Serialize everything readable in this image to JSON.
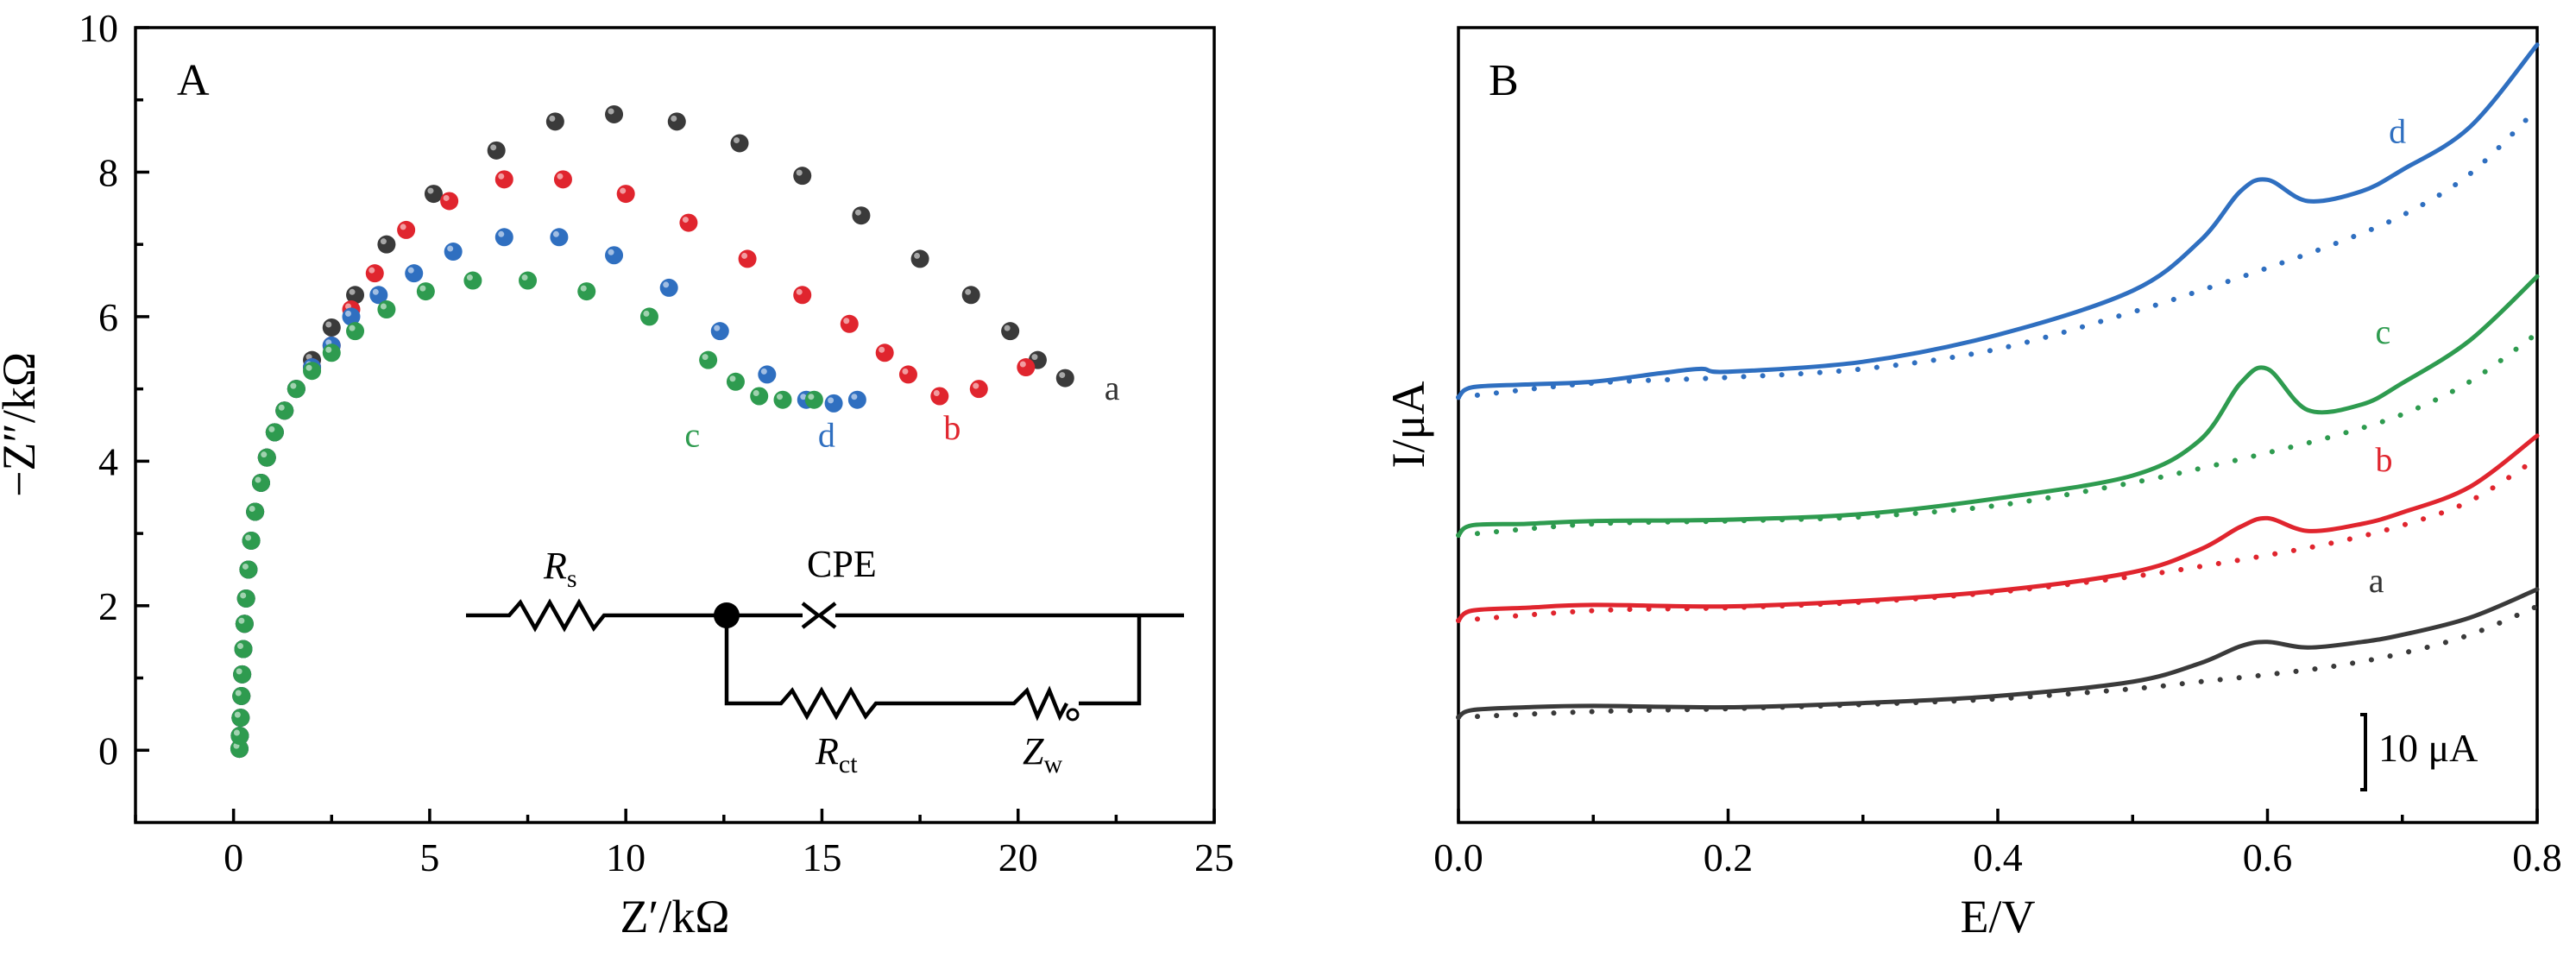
{
  "colors": {
    "a": "#3a3a3a",
    "b": "#e0252e",
    "c": "#2e9b4f",
    "d": "#2f6fc0"
  },
  "chart_data": [
    {
      "panel": "A",
      "type": "scatter",
      "xlabel": "Z′/kΩ",
      "ylabel": "−Z″/kΩ",
      "xlim": [
        -2.5,
        25
      ],
      "ylim": [
        -1,
        10
      ],
      "xticks": [
        "0",
        "5",
        "10",
        "15",
        "20",
        "25"
      ],
      "yticks": [
        "0",
        "2",
        "4",
        "6",
        "8",
        "10"
      ],
      "series": [
        {
          "name": "a",
          "x": [
            0.15,
            0.16,
            0.18,
            0.2,
            0.22,
            0.25,
            0.28,
            0.32,
            0.38,
            0.45,
            0.55,
            0.7,
            0.85,
            1.05,
            1.3,
            1.6,
            2.0,
            2.5,
            3.1,
            3.9,
            5.1,
            6.7,
            8.2,
            9.7,
            11.3,
            12.9,
            14.5,
            16.0,
            17.5,
            18.8,
            19.8,
            20.5,
            21.2
          ],
          "y": [
            0.02,
            0.2,
            0.45,
            0.75,
            1.05,
            1.4,
            1.75,
            2.1,
            2.5,
            2.9,
            3.3,
            3.7,
            4.05,
            4.4,
            4.7,
            5.0,
            5.4,
            5.85,
            6.3,
            7.0,
            7.7,
            8.3,
            8.7,
            8.8,
            8.7,
            8.4,
            7.95,
            7.4,
            6.8,
            6.3,
            5.8,
            5.4,
            5.15
          ]
        },
        {
          "name": "b",
          "x": [
            0.15,
            0.16,
            0.18,
            0.2,
            0.22,
            0.25,
            0.28,
            0.32,
            0.38,
            0.45,
            0.55,
            0.7,
            0.85,
            1.05,
            1.3,
            1.6,
            2.0,
            2.5,
            3.0,
            3.6,
            4.4,
            5.5,
            6.9,
            8.4,
            10.0,
            11.6,
            13.1,
            14.5,
            15.7,
            16.6,
            17.2,
            18.0,
            19.0,
            20.2
          ],
          "y": [
            0.02,
            0.2,
            0.45,
            0.75,
            1.05,
            1.4,
            1.75,
            2.1,
            2.5,
            2.9,
            3.3,
            3.7,
            4.05,
            4.4,
            4.7,
            5.0,
            5.3,
            5.6,
            6.1,
            6.6,
            7.2,
            7.6,
            7.9,
            7.9,
            7.7,
            7.3,
            6.8,
            6.3,
            5.9,
            5.5,
            5.2,
            4.9,
            5.0,
            5.3
          ]
        },
        {
          "name": "c",
          "x": [
            0.15,
            0.16,
            0.18,
            0.2,
            0.22,
            0.25,
            0.28,
            0.32,
            0.38,
            0.45,
            0.55,
            0.7,
            0.85,
            1.05,
            1.3,
            1.6,
            2.0,
            2.5,
            3.1,
            3.9,
            4.9,
            6.1,
            7.5,
            9.0,
            10.6,
            12.1,
            12.8,
            13.4,
            14.0,
            14.8
          ],
          "y": [
            0.02,
            0.2,
            0.45,
            0.75,
            1.05,
            1.4,
            1.75,
            2.1,
            2.5,
            2.9,
            3.3,
            3.7,
            4.05,
            4.4,
            4.7,
            5.0,
            5.25,
            5.5,
            5.8,
            6.1,
            6.35,
            6.5,
            6.5,
            6.35,
            6.0,
            5.4,
            5.1,
            4.9,
            4.85,
            4.85
          ]
        },
        {
          "name": "d",
          "x": [
            0.15,
            0.16,
            0.18,
            0.2,
            0.22,
            0.25,
            0.28,
            0.32,
            0.38,
            0.45,
            0.55,
            0.7,
            0.85,
            1.05,
            1.3,
            1.6,
            2.0,
            2.5,
            3.0,
            3.7,
            4.6,
            5.6,
            6.9,
            8.3,
            9.7,
            11.1,
            12.4,
            13.6,
            14.6,
            15.3,
            15.9
          ],
          "y": [
            0.02,
            0.2,
            0.45,
            0.75,
            1.05,
            1.4,
            1.75,
            2.1,
            2.5,
            2.9,
            3.3,
            3.7,
            4.05,
            4.4,
            4.7,
            5.0,
            5.3,
            5.6,
            6.0,
            6.3,
            6.6,
            6.9,
            7.1,
            7.1,
            6.85,
            6.4,
            5.8,
            5.2,
            4.85,
            4.8,
            4.85
          ]
        }
      ],
      "curve_labels": [
        {
          "text": "a",
          "series": "a",
          "x": 22.2,
          "y": 4.85
        },
        {
          "text": "b",
          "series": "b",
          "x": 18.1,
          "y": 4.3
        },
        {
          "text": "c",
          "series": "c",
          "x": 11.5,
          "y": 4.2
        },
        {
          "text": "d",
          "series": "d",
          "x": 14.9,
          "y": 4.2
        }
      ],
      "circuit": {
        "rs": "R",
        "rs_sub": "s",
        "cpe": "CPE",
        "rct": "R",
        "rct_sub": "ct",
        "zw": "Z",
        "zw_sub": "w"
      }
    },
    {
      "panel": "B",
      "type": "line",
      "xlabel": "E/V",
      "ylabel": "I/μA",
      "xlim": [
        0.0,
        0.8
      ],
      "xticks": [
        "0.0",
        "0.2",
        "0.4",
        "0.6",
        "0.8"
      ],
      "scale_bar": "10 μA",
      "series": [
        {
          "name": "a",
          "x": [
            0.0,
            0.01,
            0.05,
            0.1,
            0.2,
            0.3,
            0.4,
            0.5,
            0.55,
            0.58,
            0.6,
            0.63,
            0.67,
            0.7,
            0.75,
            0.8
          ],
          "y": [
            0.0,
            0.5,
            0.7,
            0.8,
            0.7,
            1.0,
            1.5,
            2.5,
            3.8,
            5.0,
            5.3,
            4.9,
            5.3,
            5.8,
            7.0,
            9.0
          ]
        },
        {
          "name": "a-dashed",
          "x": [
            0.0,
            0.1,
            0.2,
            0.3,
            0.4,
            0.5,
            0.55,
            0.6,
            0.65,
            0.7,
            0.75,
            0.8
          ],
          "y": [
            0.0,
            0.4,
            0.6,
            0.9,
            1.3,
            2.0,
            2.5,
            3.0,
            3.6,
            4.5,
            5.8,
            7.8
          ]
        },
        {
          "name": "b",
          "x": [
            0.0,
            0.01,
            0.05,
            0.1,
            0.2,
            0.3,
            0.4,
            0.5,
            0.55,
            0.58,
            0.6,
            0.63,
            0.67,
            0.7,
            0.75,
            0.8
          ],
          "y": [
            6.8,
            7.5,
            7.7,
            7.9,
            7.8,
            8.2,
            8.9,
            10.2,
            11.8,
            13.4,
            14.0,
            13.1,
            13.6,
            14.4,
            16.2,
            19.8
          ]
        },
        {
          "name": "b-dashed",
          "x": [
            0.0,
            0.1,
            0.2,
            0.3,
            0.4,
            0.5,
            0.55,
            0.6,
            0.65,
            0.7,
            0.75,
            0.8
          ],
          "y": [
            6.8,
            7.5,
            7.7,
            8.1,
            8.8,
            9.9,
            10.6,
            11.4,
            12.3,
            13.5,
            15.2,
            18.2
          ]
        },
        {
          "name": "c",
          "x": [
            0.0,
            0.01,
            0.05,
            0.1,
            0.2,
            0.3,
            0.4,
            0.5,
            0.55,
            0.58,
            0.6,
            0.63,
            0.67,
            0.7,
            0.75,
            0.8
          ],
          "y": [
            12.8,
            13.5,
            13.6,
            13.8,
            13.9,
            14.3,
            15.4,
            17.0,
            19.5,
            23.5,
            24.5,
            21.6,
            22.0,
            23.5,
            26.5,
            31.0
          ]
        },
        {
          "name": "c-dashed",
          "x": [
            0.0,
            0.1,
            0.2,
            0.3,
            0.4,
            0.5,
            0.55,
            0.6,
            0.65,
            0.7,
            0.75,
            0.8
          ],
          "y": [
            12.8,
            13.6,
            13.8,
            14.1,
            14.9,
            16.5,
            17.5,
            18.6,
            19.8,
            21.3,
            23.6,
            27.0
          ]
        },
        {
          "name": "d",
          "x": [
            0.0,
            0.01,
            0.05,
            0.1,
            0.15,
            0.18,
            0.2,
            0.3,
            0.4,
            0.5,
            0.55,
            0.58,
            0.6,
            0.63,
            0.67,
            0.7,
            0.75,
            0.8
          ],
          "y": [
            22.5,
            23.2,
            23.4,
            23.6,
            24.2,
            24.5,
            24.3,
            25.0,
            26.9,
            30.0,
            33.5,
            37.0,
            37.8,
            36.3,
            37.0,
            38.5,
            41.5,
            47.3
          ]
        },
        {
          "name": "d-dashed",
          "x": [
            0.0,
            0.1,
            0.2,
            0.3,
            0.4,
            0.5,
            0.55,
            0.6,
            0.65,
            0.7,
            0.75,
            0.8
          ],
          "y": [
            22.5,
            23.5,
            23.9,
            24.5,
            25.9,
            28.5,
            30.0,
            31.6,
            33.3,
            35.3,
            38.2,
            42.8
          ]
        }
      ],
      "curve_labels": [
        {
          "text": "a",
          "series": "a",
          "x": 0.675,
          "y": 8.8
        },
        {
          "text": "b",
          "series": "b",
          "x": 0.68,
          "y": 17.3
        },
        {
          "text": "c",
          "series": "c",
          "x": 0.68,
          "y": 26.3
        },
        {
          "text": "d",
          "series": "d",
          "x": 0.69,
          "y": 40.4
        }
      ]
    }
  ]
}
